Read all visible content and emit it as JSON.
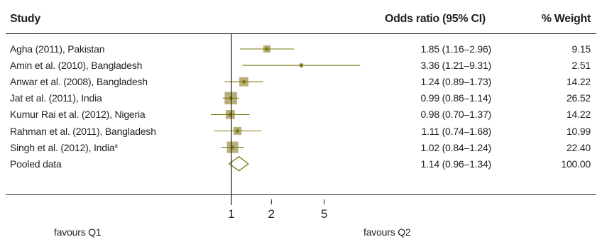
{
  "chart_data": {
    "type": "forest",
    "headers": {
      "study": "Study",
      "or": "Odds ratio (95% CI)",
      "weight": "% Weight"
    },
    "xscale": "log",
    "xticks": [
      1,
      2,
      5
    ],
    "xlim": [
      0.55,
      8.0
    ],
    "reference_line": 1,
    "favours_left": "favours Q1",
    "favours_right": "favours Q2",
    "color": "#7d7a10",
    "box_color": "#b8b07a",
    "rows": [
      {
        "study": "Agha (2011), Pakistan",
        "sup": "",
        "or": 1.85,
        "lo": 1.16,
        "hi": 2.96,
        "or_text": "1.85 (1.16–2.96)",
        "weight": 9.15,
        "weight_text": "9.15"
      },
      {
        "study": "Amin et al. (2010), Bangladesh",
        "sup": "",
        "or": 3.36,
        "lo": 1.21,
        "hi": 9.31,
        "or_text": "3.36 (1.21–9.31)",
        "weight": 2.51,
        "weight_text": "2.51"
      },
      {
        "study": "Anwar et al. (2008), Bangladesh",
        "sup": "",
        "or": 1.24,
        "lo": 0.89,
        "hi": 1.73,
        "or_text": "1.24 (0.89–1.73)",
        "weight": 14.22,
        "weight_text": "14.22"
      },
      {
        "study": "Jat et al. (2011), India",
        "sup": "",
        "or": 0.99,
        "lo": 0.86,
        "hi": 1.14,
        "or_text": "0.99 (0.86–1.14)",
        "weight": 26.52,
        "weight_text": "26.52"
      },
      {
        "study": "Kumur Rai et al. (2012), Nigeria",
        "sup": "",
        "or": 0.98,
        "lo": 0.7,
        "hi": 1.37,
        "or_text": "0.98 (0.70–1.37)",
        "weight": 14.22,
        "weight_text": "14.22"
      },
      {
        "study": "Rahman et al. (2011), Bangladesh",
        "sup": "",
        "or": 1.11,
        "lo": 0.74,
        "hi": 1.68,
        "or_text": "1.11 (0.74–1.68)",
        "weight": 10.99,
        "weight_text": "10.99"
      },
      {
        "study": "Singh et al. (2012), India",
        "sup": "a",
        "or": 1.02,
        "lo": 0.84,
        "hi": 1.24,
        "or_text": "1.02 (0.84–1.24)",
        "weight": 22.4,
        "weight_text": "22.40"
      }
    ],
    "pooled": {
      "study": "Pooled data",
      "or": 1.14,
      "lo": 0.96,
      "hi": 1.34,
      "or_text": "1.14 (0.96–1.34)",
      "weight": 100.0,
      "weight_text": "100.00"
    }
  }
}
